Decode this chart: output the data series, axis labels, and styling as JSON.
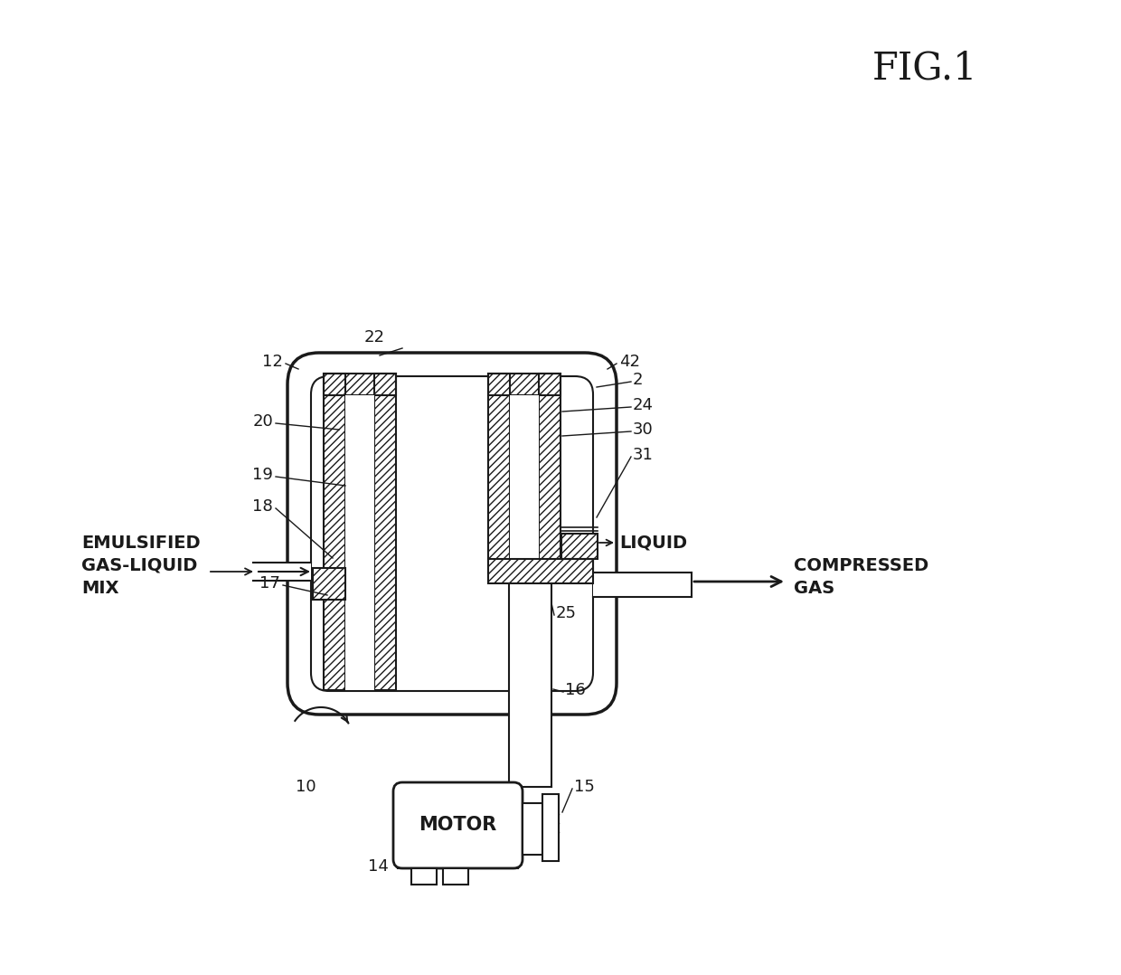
{
  "bg_color": "#ffffff",
  "line_color": "#1a1a1a",
  "labels": {
    "fig_title": "FIG.1",
    "emulsified": "EMULSIFIED\nGAS-LIQUID\nMIX",
    "compressed_gas": "COMPRESSED\nGAS",
    "liquid": "LIQUID",
    "motor": "MOTOR",
    "n22": "22",
    "n12": "12",
    "n42": "42",
    "n2": "2",
    "n24": "24",
    "n30": "30",
    "n31": "31",
    "n20": "20",
    "n19": "19",
    "n18": "18",
    "n17": "17",
    "n25": "25",
    "n16": "16",
    "n15": "15",
    "n14": "14",
    "n10": "10"
  },
  "title_fontsize": 30,
  "label_fontsize": 14,
  "ref_fontsize": 13
}
